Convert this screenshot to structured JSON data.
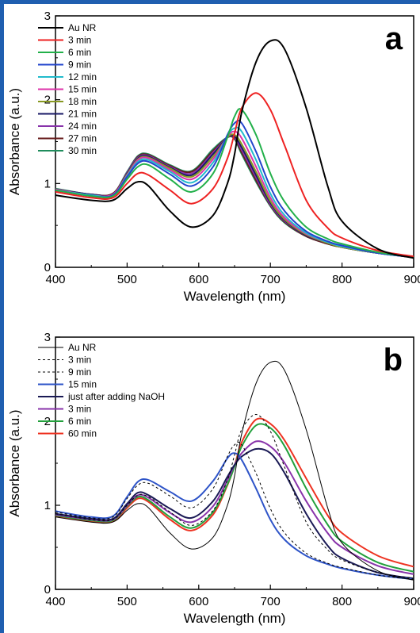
{
  "chart_data": [
    {
      "type": "line",
      "panel_label": "a",
      "xlabel": "Wavelength (nm)",
      "ylabel": "Absorbance (a.u.)",
      "xlim": [
        400,
        900
      ],
      "ylim": [
        0,
        3
      ],
      "x_ticks": [
        "400",
        "500",
        "600",
        "700",
        "800",
        "900"
      ],
      "y_ticks": [
        "0",
        "1",
        "2",
        "3"
      ],
      "legend_position": "top-left",
      "x": [
        400,
        450,
        480,
        500,
        515,
        530,
        560,
        590,
        620,
        640,
        650,
        660,
        680,
        700,
        720,
        750,
        780,
        800,
        850,
        900
      ],
      "series": [
        {
          "name": "Au NR",
          "color": "#000000",
          "values": [
            0.86,
            0.8,
            0.8,
            0.94,
            1.02,
            0.97,
            0.67,
            0.48,
            0.62,
            1.0,
            1.35,
            1.85,
            2.45,
            2.7,
            2.6,
            1.9,
            0.97,
            0.55,
            0.22,
            0.11
          ]
        },
        {
          "name": "3 min",
          "color": "#ee2222",
          "values": [
            0.9,
            0.83,
            0.83,
            1.0,
            1.12,
            1.1,
            0.92,
            0.76,
            0.94,
            1.3,
            1.6,
            1.9,
            2.08,
            1.88,
            1.45,
            0.8,
            0.47,
            0.35,
            0.2,
            0.13
          ]
        },
        {
          "name": "6 min",
          "color": "#22b04a",
          "values": [
            0.92,
            0.85,
            0.85,
            1.05,
            1.2,
            1.22,
            1.05,
            0.9,
            1.12,
            1.55,
            1.8,
            1.88,
            1.58,
            1.12,
            0.78,
            0.48,
            0.34,
            0.28,
            0.18,
            0.12
          ]
        },
        {
          "name": "9 min",
          "color": "#2244cc",
          "values": [
            0.92,
            0.85,
            0.86,
            1.08,
            1.24,
            1.26,
            1.11,
            0.97,
            1.2,
            1.58,
            1.72,
            1.72,
            1.38,
            0.96,
            0.67,
            0.43,
            0.31,
            0.26,
            0.17,
            0.12
          ]
        },
        {
          "name": "12 min",
          "color": "#22bbcc",
          "values": [
            0.92,
            0.86,
            0.86,
            1.09,
            1.26,
            1.28,
            1.14,
            1.01,
            1.25,
            1.57,
            1.66,
            1.62,
            1.28,
            0.88,
            0.62,
            0.41,
            0.3,
            0.25,
            0.17,
            0.12
          ]
        },
        {
          "name": "15 min",
          "color": "#dd33aa",
          "values": [
            0.93,
            0.86,
            0.87,
            1.1,
            1.28,
            1.3,
            1.16,
            1.05,
            1.29,
            1.56,
            1.62,
            1.54,
            1.2,
            0.83,
            0.59,
            0.4,
            0.3,
            0.25,
            0.17,
            0.12
          ]
        },
        {
          "name": "18 min",
          "color": "#889922",
          "values": [
            0.93,
            0.86,
            0.87,
            1.11,
            1.29,
            1.31,
            1.18,
            1.08,
            1.32,
            1.55,
            1.58,
            1.47,
            1.14,
            0.79,
            0.57,
            0.39,
            0.29,
            0.24,
            0.17,
            0.12
          ]
        },
        {
          "name": "21 min",
          "color": "#1a1a66",
          "values": [
            0.93,
            0.87,
            0.87,
            1.12,
            1.3,
            1.32,
            1.19,
            1.1,
            1.35,
            1.55,
            1.56,
            1.43,
            1.1,
            0.77,
            0.56,
            0.38,
            0.29,
            0.24,
            0.17,
            0.12
          ]
        },
        {
          "name": "24 min",
          "color": "#8833aa",
          "values": [
            0.93,
            0.87,
            0.87,
            1.13,
            1.31,
            1.33,
            1.2,
            1.12,
            1.37,
            1.55,
            1.55,
            1.4,
            1.07,
            0.75,
            0.55,
            0.38,
            0.29,
            0.24,
            0.17,
            0.12
          ]
        },
        {
          "name": "27 min",
          "color": "#661a1a",
          "values": [
            0.93,
            0.87,
            0.88,
            1.13,
            1.32,
            1.34,
            1.21,
            1.14,
            1.39,
            1.55,
            1.54,
            1.37,
            1.04,
            0.74,
            0.54,
            0.37,
            0.28,
            0.24,
            0.17,
            0.12
          ]
        },
        {
          "name": "30 min",
          "color": "#1f8c5c",
          "values": [
            0.94,
            0.87,
            0.88,
            1.14,
            1.33,
            1.35,
            1.22,
            1.15,
            1.41,
            1.55,
            1.53,
            1.35,
            1.02,
            0.73,
            0.53,
            0.37,
            0.28,
            0.24,
            0.17,
            0.12
          ]
        }
      ]
    },
    {
      "type": "line",
      "panel_label": "b",
      "xlabel": "Wavelength (nm)",
      "ylabel": "Absorbance (a.u.)",
      "xlim": [
        400,
        900
      ],
      "ylim": [
        0,
        3
      ],
      "x_ticks": [
        "400",
        "500",
        "600",
        "700",
        "800",
        "900"
      ],
      "y_ticks": [
        "0",
        "1",
        "2",
        "3"
      ],
      "legend_position": "top-left",
      "x": [
        400,
        450,
        480,
        500,
        515,
        530,
        560,
        590,
        620,
        640,
        650,
        660,
        680,
        700,
        720,
        750,
        780,
        800,
        850,
        900
      ],
      "series": [
        {
          "name": "Au NR",
          "color": "#000000",
          "dash": false,
          "width": 1,
          "values": [
            0.86,
            0.8,
            0.8,
            0.94,
            1.02,
            0.97,
            0.67,
            0.48,
            0.62,
            1.0,
            1.35,
            1.85,
            2.45,
            2.7,
            2.6,
            1.9,
            0.97,
            0.55,
            0.22,
            0.11
          ]
        },
        {
          "name": "3 min",
          "color": "#000000",
          "dash": true,
          "width": 1,
          "values": [
            0.9,
            0.83,
            0.83,
            1.0,
            1.12,
            1.1,
            0.92,
            0.76,
            0.94,
            1.3,
            1.6,
            1.9,
            2.08,
            1.88,
            1.45,
            0.8,
            0.47,
            0.35,
            0.2,
            0.13
          ]
        },
        {
          "name": "9 min",
          "color": "#000000",
          "dash": true,
          "width": 1,
          "values": [
            0.92,
            0.85,
            0.86,
            1.08,
            1.24,
            1.26,
            1.11,
            0.97,
            1.2,
            1.58,
            1.72,
            1.72,
            1.38,
            0.96,
            0.67,
            0.43,
            0.31,
            0.26,
            0.17,
            0.12
          ]
        },
        {
          "name": "15 min",
          "color": "#2e54c8",
          "dash": false,
          "width": 2,
          "values": [
            0.93,
            0.86,
            0.87,
            1.1,
            1.28,
            1.3,
            1.16,
            1.05,
            1.29,
            1.56,
            1.62,
            1.54,
            1.2,
            0.83,
            0.59,
            0.4,
            0.3,
            0.25,
            0.17,
            0.12
          ]
        },
        {
          "name": "just after adding NaOH",
          "color": "#1a1a55",
          "dash": false,
          "width": 2,
          "values": [
            0.9,
            0.84,
            0.84,
            1.02,
            1.15,
            1.12,
            0.96,
            0.85,
            1.05,
            1.34,
            1.48,
            1.58,
            1.67,
            1.62,
            1.38,
            0.9,
            0.52,
            0.37,
            0.2,
            0.13
          ]
        },
        {
          "name": "3 min",
          "color": "#8833aa",
          "dash": false,
          "width": 2,
          "values": [
            0.89,
            0.83,
            0.83,
            1.0,
            1.12,
            1.09,
            0.91,
            0.8,
            0.99,
            1.3,
            1.48,
            1.62,
            1.76,
            1.7,
            1.5,
            1.05,
            0.67,
            0.5,
            0.28,
            0.18
          ]
        },
        {
          "name": "6 min",
          "color": "#22a03c",
          "dash": false,
          "width": 2,
          "values": [
            0.88,
            0.82,
            0.82,
            0.99,
            1.1,
            1.06,
            0.86,
            0.73,
            0.92,
            1.25,
            1.46,
            1.7,
            1.95,
            1.92,
            1.7,
            1.2,
            0.77,
            0.57,
            0.32,
            0.21
          ]
        },
        {
          "name": "60 min",
          "color": "#ee3322",
          "dash": false,
          "width": 2,
          "values": [
            0.87,
            0.81,
            0.81,
            0.97,
            1.08,
            1.04,
            0.83,
            0.7,
            0.89,
            1.24,
            1.47,
            1.75,
            2.02,
            1.97,
            1.77,
            1.32,
            0.88,
            0.67,
            0.4,
            0.27
          ]
        }
      ]
    }
  ]
}
